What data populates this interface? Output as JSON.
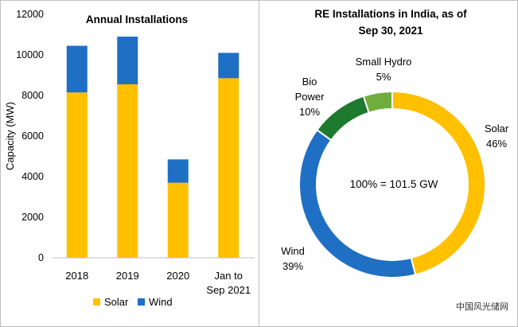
{
  "chart_data": [
    {
      "type": "bar",
      "stacked": true,
      "title": "Annual Installations",
      "ylabel": "Capacity (MW)",
      "categories": [
        "2018",
        "2019",
        "2020",
        "Jan to|Sep 2021"
      ],
      "series": [
        {
          "name": "Solar",
          "color": "#FFC000",
          "values": [
            8150,
            8550,
            3700,
            8850
          ]
        },
        {
          "name": "Wind",
          "color": "#1F6FC5",
          "values": [
            2300,
            2350,
            1150,
            1250
          ]
        }
      ],
      "ylim": [
        0,
        12000
      ],
      "yticks": [
        "0",
        "2000",
        "4000",
        "6000",
        "8000",
        "10000",
        "12000"
      ],
      "grid": false,
      "legend": "bottom"
    },
    {
      "type": "pie",
      "donut": true,
      "title": "RE Installations in India, as of|Sep 30, 2021",
      "center_label": "100% = 101.5 GW",
      "slices": [
        {
          "label": "Solar",
          "pct_label": "46%",
          "value": 46,
          "color": "#FFC000"
        },
        {
          "label": "Wind",
          "pct_label": "39%",
          "value": 39,
          "color": "#1F6FC5"
        },
        {
          "label": "Bio|Power",
          "pct_label": "10%",
          "value": 10,
          "color": "#1E7A2E"
        },
        {
          "label": "Small Hydro",
          "pct_label": "5%",
          "value": 5,
          "color": "#6FAD3C"
        }
      ]
    }
  ],
  "watermark": "中国风光储网"
}
